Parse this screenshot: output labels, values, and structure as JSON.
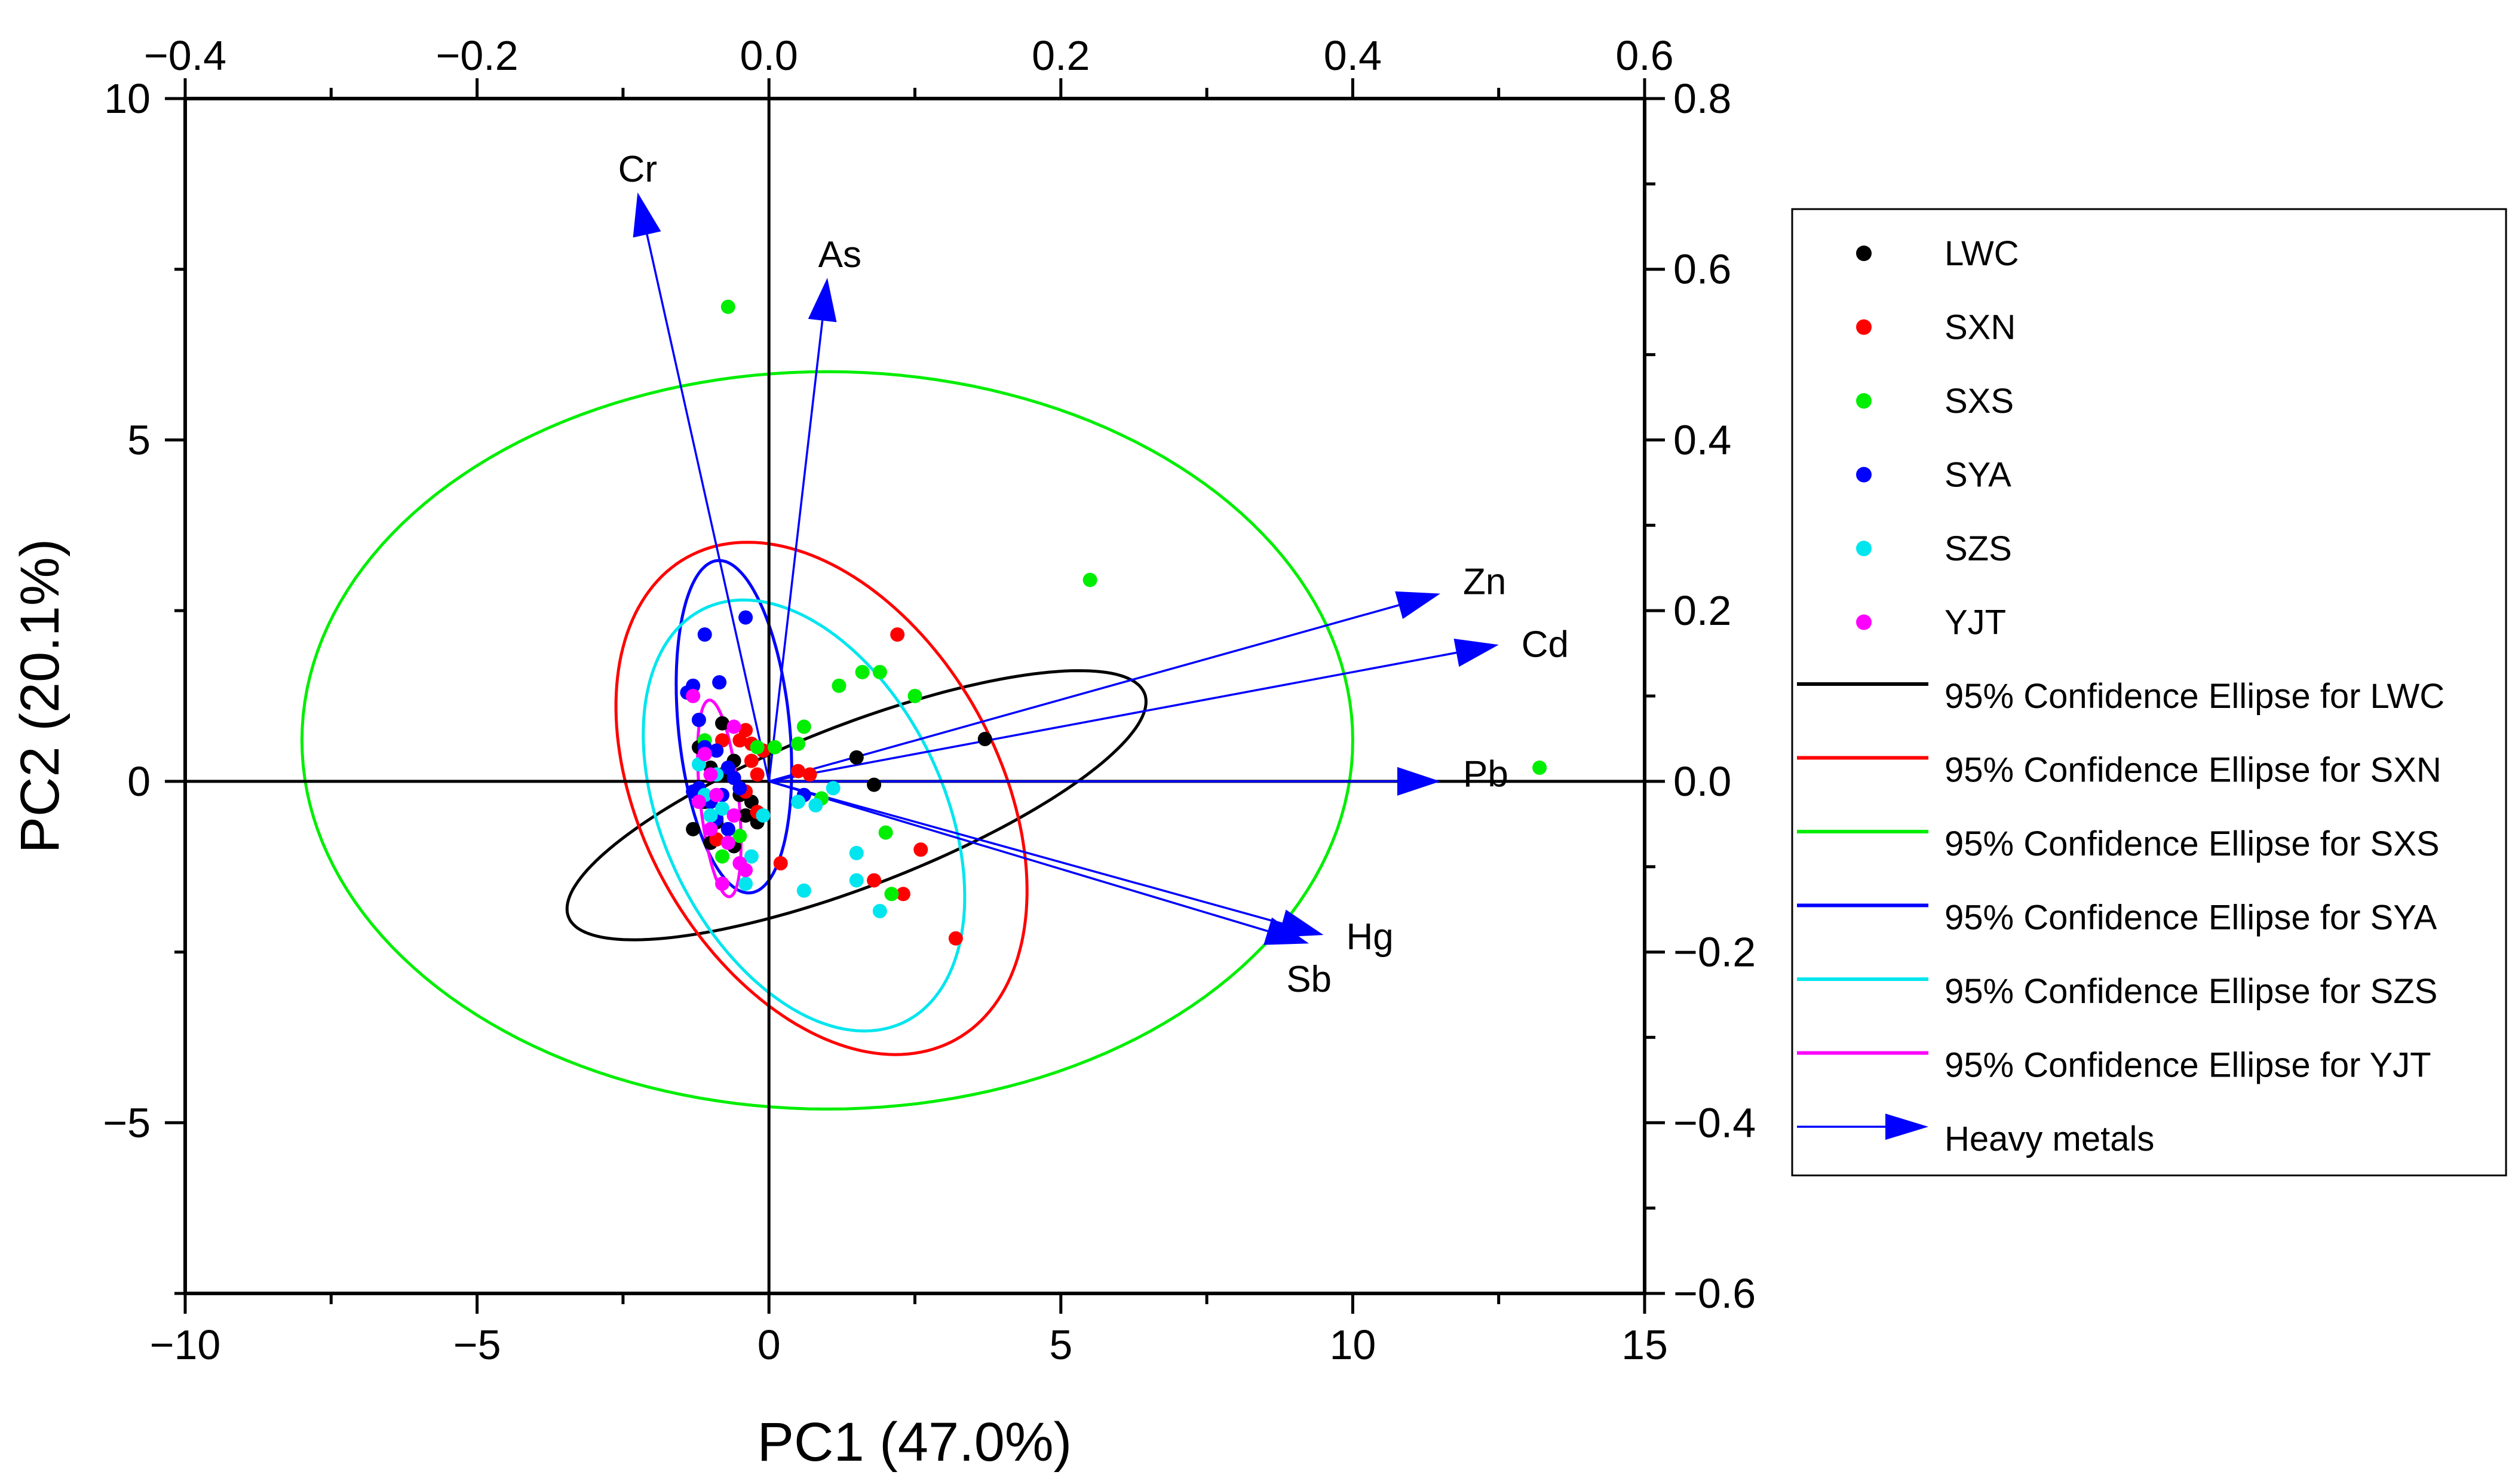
{
  "chart_data": {
    "type": "scatter",
    "title": "",
    "xlabel": "PC1 (47.0%)",
    "ylabel": "PC2 (20.1%)",
    "xlim": [
      -10,
      15
    ],
    "ylim": [
      -7.5,
      10
    ],
    "x_ticks": [
      -10,
      -5,
      0,
      5,
      10,
      15
    ],
    "x_tick_labels": [
      "−10",
      "−5",
      "0",
      "5",
      "10",
      "15"
    ],
    "y_ticks": [
      -5,
      0,
      5,
      10
    ],
    "y_tick_labels": [
      "−5",
      "0",
      "5",
      "10"
    ],
    "top_axis": {
      "lim": [
        -0.4,
        0.6
      ],
      "ticks": [
        -0.4,
        -0.2,
        0.0,
        0.2,
        0.4,
        0.6
      ],
      "tick_labels": [
        "−0.4",
        "−0.2",
        "0.0",
        "0.2",
        "0.4",
        "0.6"
      ]
    },
    "right_axis": {
      "lim": [
        -0.6,
        0.8
      ],
      "ticks": [
        -0.6,
        -0.4,
        -0.2,
        0.0,
        0.2,
        0.4,
        0.6,
        0.8
      ],
      "tick_labels": [
        "−0.6",
        "−0.4",
        "−0.2",
        "0.0",
        "0.2",
        "0.4",
        "0.6",
        "0.8"
      ]
    },
    "series": [
      {
        "name": "LWC",
        "color": "#000000",
        "points": [
          [
            1.5,
            0.35
          ],
          [
            3.7,
            0.62
          ],
          [
            1.8,
            -0.05
          ],
          [
            -0.6,
            0.3
          ],
          [
            -0.8,
            0.1
          ],
          [
            -1.1,
            -0.3
          ],
          [
            -0.5,
            -0.2
          ],
          [
            -0.9,
            -0.6
          ],
          [
            -0.4,
            -0.5
          ],
          [
            -1.0,
            -0.9
          ],
          [
            -0.7,
            -0.7
          ],
          [
            -1.3,
            -0.7
          ],
          [
            -0.3,
            -0.3
          ],
          [
            -0.6,
            -0.95
          ],
          [
            -1.2,
            0.5
          ],
          [
            -0.2,
            -0.6
          ],
          [
            -0.8,
            0.85
          ],
          [
            -0.5,
            -0.1
          ],
          [
            -1.0,
            0.2
          ]
        ]
      },
      {
        "name": "SXN",
        "color": "#ff0000",
        "points": [
          [
            2.2,
            2.15
          ],
          [
            -0.5,
            0.6
          ],
          [
            -0.4,
            0.75
          ],
          [
            -0.3,
            0.3
          ],
          [
            -0.2,
            0.1
          ],
          [
            0.5,
            0.15
          ],
          [
            0.7,
            0.1
          ],
          [
            2.6,
            -1.0
          ],
          [
            2.3,
            -1.65
          ],
          [
            3.2,
            -2.3
          ],
          [
            0.2,
            -1.2
          ],
          [
            -0.9,
            -0.85
          ],
          [
            -0.6,
            0.05
          ],
          [
            -0.3,
            0.55
          ],
          [
            -0.4,
            -0.15
          ],
          [
            1.8,
            -1.45
          ],
          [
            -0.1,
            0.45
          ],
          [
            -0.8,
            0.6
          ],
          [
            -0.2,
            -0.45
          ]
        ]
      },
      {
        "name": "SXS",
        "color": "#00ee00",
        "points": [
          [
            -0.7,
            6.95
          ],
          [
            5.5,
            2.95
          ],
          [
            13.2,
            0.2
          ],
          [
            1.9,
            1.6
          ],
          [
            1.6,
            1.6
          ],
          [
            2.5,
            1.25
          ],
          [
            1.2,
            1.4
          ],
          [
            0.6,
            0.8
          ],
          [
            0.1,
            0.5
          ],
          [
            0.5,
            0.55
          ],
          [
            2.0,
            -0.75
          ],
          [
            0.9,
            -0.25
          ],
          [
            -1.0,
            -0.5
          ],
          [
            -0.8,
            -1.1
          ],
          [
            2.1,
            -1.65
          ],
          [
            -0.5,
            -0.8
          ],
          [
            -0.2,
            0.5
          ],
          [
            -1.1,
            0.6
          ]
        ]
      },
      {
        "name": "SYA",
        "color": "#0000ff",
        "points": [
          [
            -0.4,
            2.4
          ],
          [
            -1.1,
            2.15
          ],
          [
            -0.85,
            1.45
          ],
          [
            -1.4,
            1.3
          ],
          [
            -1.3,
            1.4
          ],
          [
            -1.2,
            0.9
          ],
          [
            0.6,
            -0.2
          ],
          [
            -1.2,
            -0.1
          ],
          [
            -1.1,
            0.5
          ],
          [
            -0.9,
            0.45
          ],
          [
            -0.7,
            0.2
          ],
          [
            -0.7,
            -0.7
          ],
          [
            -1.0,
            -0.3
          ],
          [
            -0.8,
            -0.2
          ],
          [
            -0.5,
            -0.1
          ],
          [
            -0.9,
            -0.55
          ],
          [
            -1.3,
            -0.15
          ],
          [
            -0.6,
            0.05
          ]
        ]
      },
      {
        "name": "SZS",
        "color": "#00e5ee",
        "points": [
          [
            0.6,
            -1.6
          ],
          [
            1.9,
            -1.9
          ],
          [
            1.5,
            -1.05
          ],
          [
            1.1,
            -0.1
          ],
          [
            0.8,
            -0.35
          ],
          [
            -0.4,
            -1.5
          ],
          [
            -1.0,
            -0.5
          ],
          [
            -1.1,
            -0.2
          ],
          [
            -0.3,
            -1.1
          ],
          [
            -1.2,
            0.25
          ],
          [
            0.5,
            -0.3
          ],
          [
            -0.7,
            -0.9
          ],
          [
            -0.9,
            0.1
          ],
          [
            -0.1,
            -0.5
          ],
          [
            -0.8,
            -0.4
          ],
          [
            1.5,
            -1.45
          ]
        ]
      },
      {
        "name": "YJT",
        "color": "#ff00ff",
        "points": [
          [
            -1.3,
            1.25
          ],
          [
            -0.6,
            0.8
          ],
          [
            -1.1,
            0.4
          ],
          [
            -0.9,
            -0.2
          ],
          [
            -0.6,
            -0.5
          ],
          [
            -1.0,
            -0.7
          ],
          [
            -0.5,
            -1.2
          ],
          [
            -0.8,
            -1.5
          ],
          [
            -0.4,
            -1.3
          ],
          [
            -1.0,
            0.1
          ],
          [
            -0.7,
            -0.9
          ],
          [
            -1.2,
            -0.3
          ]
        ]
      }
    ],
    "ellipses": [
      {
        "name": "95% Confidence Ellipse for LWC",
        "color": "#000000",
        "cx": 1.5,
        "cy": -0.35,
        "rx": 5.2,
        "ry": 1.2,
        "angle_deg": 18
      },
      {
        "name": "95% Confidence Ellipse for SXN",
        "color": "#ff0000",
        "cx": 0.9,
        "cy": -0.25,
        "rx": 4.25,
        "ry": 2.9,
        "angle_deg": -50
      },
      {
        "name": "95% Confidence Ellipse for SXS",
        "color": "#00ee00",
        "cx": 1.0,
        "cy": 0.6,
        "rx": 9.0,
        "ry": 5.4,
        "angle_deg": 0
      },
      {
        "name": "95% Confidence Ellipse for SYA",
        "color": "#0000ff",
        "cx": -0.6,
        "cy": 0.8,
        "rx": 2.45,
        "ry": 0.95,
        "angle_deg": -83
      },
      {
        "name": "95% Confidence Ellipse for SZS",
        "color": "#00e5ee",
        "cx": 0.6,
        "cy": -0.5,
        "rx": 3.5,
        "ry": 2.3,
        "angle_deg": -55
      },
      {
        "name": "95% Confidence Ellipse for YJT",
        "color": "#ff00ff",
        "cx": -0.85,
        "cy": -0.25,
        "rx": 1.45,
        "ry": 0.33,
        "angle_deg": -83
      }
    ],
    "loadings": [
      {
        "name": "Cr",
        "pc1": -0.09,
        "pc2": 0.69
      },
      {
        "name": "As",
        "pc1": 0.04,
        "pc2": 0.59
      },
      {
        "name": "Zn",
        "pc1": 0.46,
        "pc2": 0.22
      },
      {
        "name": "Cd",
        "pc1": 0.5,
        "pc2": 0.16
      },
      {
        "name": "Pb",
        "pc1": 0.46,
        "pc2": 0.0
      },
      {
        "name": "Hg",
        "pc1": 0.38,
        "pc2": -0.18
      },
      {
        "name": "Sb",
        "pc1": 0.37,
        "pc2": -0.19
      }
    ],
    "legend": {
      "position": "right",
      "items": [
        {
          "label": "LWC",
          "kind": "marker",
          "color": "#000000"
        },
        {
          "label": "SXN",
          "kind": "marker",
          "color": "#ff0000"
        },
        {
          "label": "SXS",
          "kind": "marker",
          "color": "#00ee00"
        },
        {
          "label": "SYA",
          "kind": "marker",
          "color": "#0000ff"
        },
        {
          "label": "SZS",
          "kind": "marker",
          "color": "#00e5ee"
        },
        {
          "label": "YJT",
          "kind": "marker",
          "color": "#ff00ff"
        },
        {
          "label": "95% Confidence Ellipse for LWC",
          "kind": "line",
          "color": "#000000"
        },
        {
          "label": "95% Confidence Ellipse for SXN",
          "kind": "line",
          "color": "#ff0000"
        },
        {
          "label": "95% Confidence Ellipse for SXS",
          "kind": "line",
          "color": "#00ee00"
        },
        {
          "label": "95% Confidence Ellipse for SYA",
          "kind": "line",
          "color": "#0000ff"
        },
        {
          "label": "95% Confidence Ellipse for SZS",
          "kind": "line",
          "color": "#00e5ee"
        },
        {
          "label": "95% Confidence Ellipse for YJT",
          "kind": "line",
          "color": "#ff00ff"
        },
        {
          "label": "Heavy metals",
          "kind": "arrow",
          "color": "#0000ff"
        }
      ]
    }
  }
}
